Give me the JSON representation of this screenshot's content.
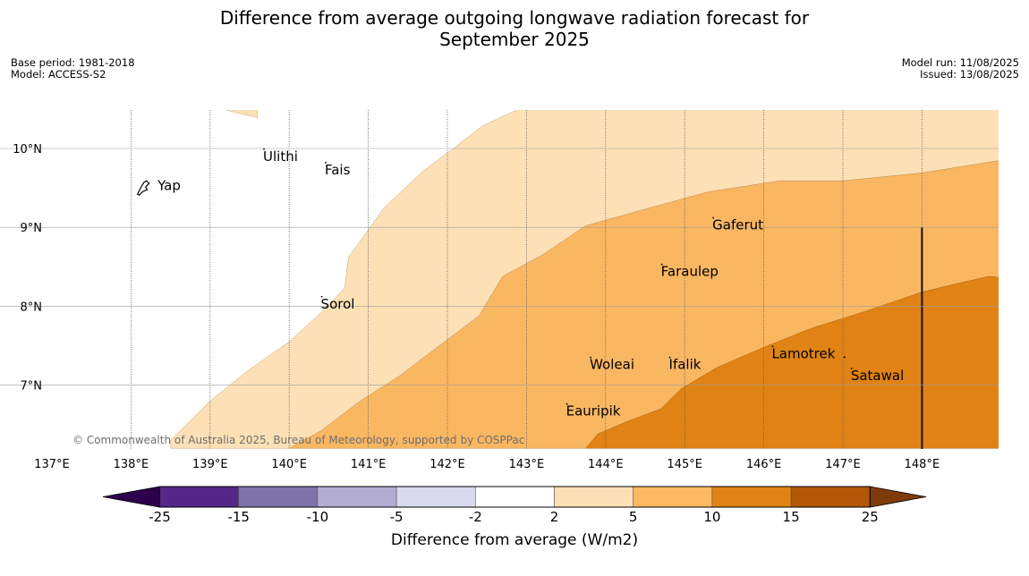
{
  "title": {
    "line1": "Difference from average outgoing longwave radiation forecast for",
    "line2": "September 2025"
  },
  "meta_left": {
    "base_period": "Base period: 1981-2018",
    "model": "Model: ACCESS-S2"
  },
  "meta_right": {
    "model_run": "Model run: 11/08/2025",
    "issued": "Issued: 13/08/2025"
  },
  "map": {
    "lon_range": [
      137,
      149
    ],
    "lat_range": [
      6.2,
      10.5
    ],
    "lon_ticks": [
      137,
      138,
      139,
      140,
      141,
      142,
      143,
      144,
      145,
      146,
      147,
      148
    ],
    "lon_tick_labels": [
      "137°E",
      "138°E",
      "139°E",
      "140°E",
      "141°E",
      "142°E",
      "143°E",
      "144°E",
      "145°E",
      "146°E",
      "147°E",
      "148°E"
    ],
    "lat_ticks": [
      7,
      8,
      9,
      10
    ],
    "lat_tick_labels": [
      "7°N",
      "8°N",
      "9°N",
      "10°N"
    ],
    "copyright": "© Commonwealth of Australia 2025, Bureau of Meteorology, supported by COSPPac",
    "places": [
      {
        "name": "Yap",
        "lon": 138.2,
        "lat": 9.53
      },
      {
        "name": "Ulithi",
        "lon": 139.67,
        "lat": 9.9
      },
      {
        "name": "Fais",
        "lon": 140.45,
        "lat": 9.73
      },
      {
        "name": "Gaferut",
        "lon": 145.35,
        "lat": 9.03
      },
      {
        "name": "Faraulep",
        "lon": 144.7,
        "lat": 8.44
      },
      {
        "name": "Sorol",
        "lon": 140.4,
        "lat": 8.03
      },
      {
        "name": "Woleai",
        "lon": 143.8,
        "lat": 7.26
      },
      {
        "name": "Ifalik",
        "lon": 144.8,
        "lat": 7.26
      },
      {
        "name": "Lamotrek",
        "lon": 146.1,
        "lat": 7.4
      },
      {
        "name": "Satawal",
        "lon": 147.1,
        "lat": 7.12
      },
      {
        "name": "Eauripik",
        "lon": 143.5,
        "lat": 6.67
      }
    ],
    "fill_colors": {
      "band_2_5": "#fde0b5",
      "band_5_10": "#fab762",
      "band_10_15": "#e08314"
    }
  },
  "colorbar": {
    "label": "Difference from average (W/m2)",
    "ticks": [
      "-25",
      "-15",
      "-10",
      "-5",
      "-2",
      "2",
      "5",
      "10",
      "15",
      "25"
    ],
    "colors": [
      "#2d004b",
      "#542788",
      "#8073ac",
      "#b2abd2",
      "#d8daeb",
      "#ffffff",
      "#fee0b6",
      "#fdb863",
      "#e08214",
      "#b35806",
      "#7f3b08"
    ]
  }
}
